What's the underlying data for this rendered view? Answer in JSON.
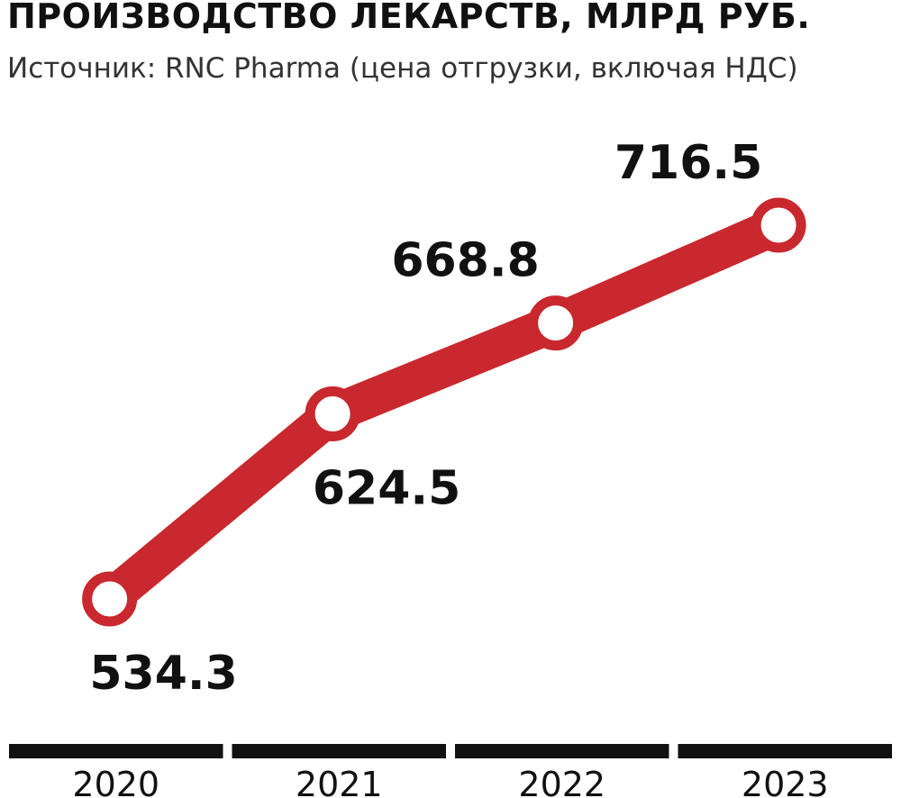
{
  "chart_data": {
    "type": "line",
    "title": "ПРОИЗВОДСТВО ЛЕКАРСТВ, МЛРД РУБ.",
    "subtitle": "Источник: RNC Pharma (цена отгрузки, включая НДС)",
    "categories": [
      "2020",
      "2021",
      "2022",
      "2023"
    ],
    "values": [
      534.3,
      624.5,
      668.8,
      716.5
    ],
    "value_labels": [
      "534.3",
      "624.5",
      "668.8",
      "716.5"
    ],
    "label_positions": [
      "below",
      "below",
      "above",
      "above"
    ],
    "ylim": [
      534.3,
      716.5
    ],
    "grid": false,
    "legend": "none",
    "colors": {
      "line": "#c8282e",
      "marker_fill": "#ffffff",
      "text": "#111111",
      "axis_band": "#111111"
    }
  }
}
